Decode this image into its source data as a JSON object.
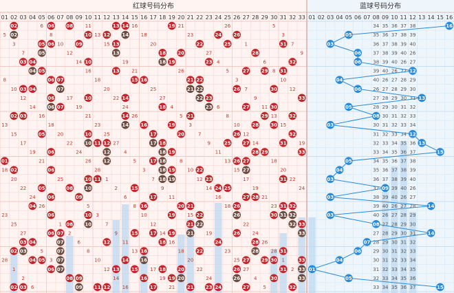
{
  "titles": {
    "red": "红球号码分布",
    "blue": "蓝球号码分布"
  },
  "colors": {
    "red_ball": "#c0262b",
    "repeat_ball": "#6b4a3f",
    "blue_ball": "#2a8ad6",
    "red_bg": "#fff4f2",
    "blue_bg": "#eef6fc",
    "grid_red": "#f1c9c2",
    "grid_blue": "#c7def1",
    "stat_bar": "#bcd8f0"
  },
  "chart_data": {
    "type": "table",
    "red_headers": [
      "01",
      "02",
      "03",
      "04",
      "05",
      "06",
      "07",
      "08",
      "09",
      "10",
      "11",
      "12",
      "13",
      "14",
      "15",
      "16",
      "17",
      "18",
      "19",
      "20",
      "21",
      "22",
      "23",
      "24",
      "25",
      "26",
      "27",
      "28",
      "29",
      "30",
      "31",
      "32",
      "33"
    ],
    "blue_headers": [
      "01",
      "02",
      "03",
      "04",
      "05",
      "06",
      "07",
      "08",
      "09",
      "10",
      "11",
      "12",
      "13",
      "14",
      "15",
      "16"
    ],
    "rows": [
      {
        "red": [
          2,
          6,
          8,
          13,
          14,
          19
        ],
        "blue": 16
      },
      {
        "red": [
          2,
          10,
          12,
          14,
          24,
          26
        ],
        "blue": 5
      },
      {
        "red": [
          5,
          6,
          9,
          13,
          22,
          25,
          31
        ],
        "blue": 3
      },
      {
        "red": [
          5,
          13,
          18,
          20,
          28
        ],
        "blue": 6
      },
      {
        "red": [
          3,
          4,
          10,
          18,
          19,
          23,
          32
        ],
        "blue": 6
      },
      {
        "red": [
          4,
          5,
          13,
          27,
          29,
          31
        ],
        "blue": 12
      },
      {
        "red": [
          6,
          7,
          15,
          16,
          21,
          22
        ],
        "blue": 4
      },
      {
        "red": [
          3,
          4,
          7,
          21,
          22,
          26,
          30
        ],
        "blue": 6
      },
      {
        "red": [
          6,
          10,
          14,
          22,
          23,
          33
        ],
        "blue": 13
      },
      {
        "red": [
          6,
          7,
          18,
          23,
          27,
          30
        ],
        "blue": 5
      },
      {
        "red": [
          2,
          3,
          14,
          21,
          29,
          32
        ],
        "blue": 8
      },
      {
        "red": [
          14,
          16,
          19,
          28,
          30
        ],
        "blue": 3
      },
      {
        "red": [
          5,
          10,
          17,
          20,
          26,
          32
        ],
        "blue": 12
      },
      {
        "red": [
          10,
          11,
          12,
          17,
          18,
          25,
          27,
          31
        ],
        "blue": 13
      },
      {
        "red": [
          6,
          12,
          18,
          19,
          28,
          29,
          33
        ],
        "blue": 15
      },
      {
        "red": [
          1,
          12,
          17,
          18,
          26,
          27
        ],
        "blue": 5
      },
      {
        "red": [
          2,
          6,
          18,
          19,
          22,
          27
        ],
        "blue": 4
      },
      {
        "red": [
          10,
          11,
          18,
          19,
          23,
          31
        ],
        "blue": 3
      },
      {
        "red": [
          5,
          8,
          10,
          15,
          24,
          25
        ],
        "blue": 9
      },
      {
        "red": [
          6,
          9,
          17,
          27,
          28
        ],
        "blue": 3
      },
      {
        "red": [
          4,
          16,
          20,
          21,
          26,
          31,
          32
        ],
        "blue": 14
      },
      {
        "red": [
          6,
          10,
          19,
          22,
          26,
          30,
          31,
          32
        ],
        "blue": 3
      },
      {
        "red": [
          8,
          10,
          21,
          22,
          32,
          33
        ],
        "blue": 8
      },
      {
        "red": [
          6,
          7,
          15,
          17,
          19,
          21,
          26,
          33
        ],
        "blue": 14
      },
      {
        "red": [
          3,
          4,
          7,
          12,
          18,
          24,
          28
        ],
        "blue": 7
      },
      {
        "red": [
          2,
          3,
          7,
          16,
          22,
          28,
          31
        ],
        "blue": 6
      },
      {
        "red": [
          4,
          5,
          7,
          14,
          16,
          27,
          29,
          30,
          33
        ],
        "blue": 4
      },
      {
        "red": [
          6,
          7,
          13,
          15,
          18,
          20,
          26,
          31,
          33
        ],
        "blue": 1
      },
      {
        "red": [
          8,
          9,
          16,
          19,
          20,
          26,
          30,
          33
        ],
        "blue": 5
      },
      {
        "red": [
          2,
          3,
          9,
          11,
          12,
          17,
          21,
          23,
          24,
          27,
          32
        ],
        "blue": 15
      }
    ],
    "blue_miss": [
      {
        "col": 8,
        "vals": [
          "26",
          "",
          "8",
          "10"
        ]
      },
      {
        "col": 8,
        "vals": [
          "27",
          "",
          "9",
          "11"
        ]
      }
    ],
    "red_miss_sample": [
      "4",
      "1",
      "5",
      "2",
      "3",
      "6",
      "7",
      "8",
      "9",
      "10",
      "11",
      "12",
      "13",
      "14",
      "15",
      "16",
      "17",
      "18",
      "19",
      "20",
      "21",
      "22",
      "23",
      "24",
      "25",
      "26",
      "27",
      "28"
    ],
    "blue_miss_sample": [
      "26",
      "8",
      "10",
      "27",
      "9",
      "11",
      "28",
      "10",
      "12",
      "29",
      "11",
      "13",
      "30",
      "12",
      "14",
      "31",
      "13",
      "15",
      "32",
      "14",
      "16",
      "33",
      "15",
      "17",
      "34",
      "16",
      "18",
      "35",
      "17",
      "19",
      "36",
      "18",
      "20",
      "37",
      "19",
      "21",
      "38",
      "20",
      "22",
      "39",
      "21",
      "23",
      "40",
      "22",
      "24"
    ]
  }
}
